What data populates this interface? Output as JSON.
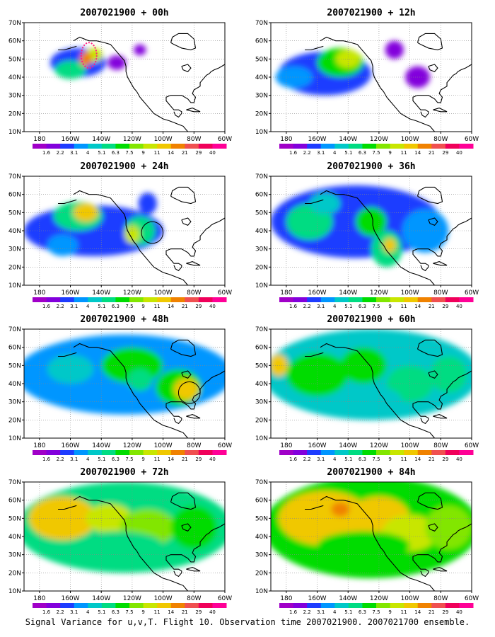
{
  "caption": "Signal Variance for u,v,T. Flight 10. Observation time 2007021900. 2007021700 ensemble.",
  "colorbar": {
    "labels": [
      "1.6",
      "2.2",
      "3.1",
      "4",
      "5.1",
      "6.3",
      "7.5",
      "9",
      "11",
      "14",
      "21",
      "29",
      "40"
    ],
    "colors": [
      "#a000c8",
      "#8200dc",
      "#1e3cff",
      "#0096ff",
      "#00c8c8",
      "#00dc82",
      "#00dc00",
      "#82e600",
      "#c8e600",
      "#f0c800",
      "#f08200",
      "#f05050",
      "#f0005a",
      "#ff0096"
    ]
  },
  "axes": {
    "x_ticks": [
      "180",
      "160W",
      "140W",
      "120W",
      "100W",
      "80W",
      "60W"
    ],
    "y_ticks": [
      "10N",
      "20N",
      "30N",
      "40N",
      "50N",
      "60N",
      "70N"
    ],
    "lon_range": [
      170,
      300
    ],
    "lat_range": [
      10,
      70
    ]
  },
  "panels": [
    {
      "title": "2007021900 + 00h",
      "blobs": [
        [
          205,
          48,
          18,
          8,
          2
        ],
        [
          200,
          44,
          10,
          5,
          5
        ],
        [
          215,
          52,
          6,
          4,
          8
        ],
        [
          210,
          50,
          4,
          4,
          10
        ],
        [
          230,
          48,
          6,
          4,
          1
        ],
        [
          245,
          55,
          4,
          3,
          1
        ]
      ],
      "rings": [],
      "dashed": [
        [
          212,
          52,
          5,
          7
        ]
      ]
    },
    {
      "title": "2007021900 + 12h",
      "blobs": [
        [
          205,
          42,
          30,
          12,
          2
        ],
        [
          215,
          48,
          15,
          8,
          6
        ],
        [
          220,
          50,
          8,
          5,
          8
        ],
        [
          185,
          40,
          12,
          6,
          3
        ],
        [
          250,
          55,
          6,
          5,
          1
        ],
        [
          265,
          40,
          8,
          6,
          1
        ]
      ],
      "rings": [],
      "dashed": []
    },
    {
      "title": "2007021900 + 24h",
      "blobs": [
        [
          215,
          40,
          45,
          14,
          2
        ],
        [
          205,
          48,
          16,
          8,
          5
        ],
        [
          210,
          50,
          8,
          5,
          9
        ],
        [
          245,
          40,
          10,
          8,
          5
        ],
        [
          240,
          38,
          5,
          5,
          8
        ],
        [
          195,
          32,
          10,
          6,
          3
        ],
        [
          250,
          55,
          6,
          6,
          2
        ]
      ],
      "rings": [
        [
          253,
          39,
          7
        ]
      ],
      "dashed": []
    },
    {
      "title": "2007021900 + 36h",
      "blobs": [
        [
          225,
          45,
          55,
          20,
          2
        ],
        [
          195,
          45,
          15,
          10,
          5
        ],
        [
          235,
          45,
          10,
          8,
          6
        ],
        [
          245,
          30,
          10,
          10,
          5
        ],
        [
          247,
          32,
          4,
          4,
          9
        ],
        [
          270,
          40,
          15,
          12,
          3
        ],
        [
          205,
          55,
          10,
          6,
          4
        ]
      ],
      "rings": [],
      "dashed": []
    },
    {
      "title": "2007021900 + 48h",
      "blobs": [
        [
          235,
          45,
          70,
          22,
          3
        ],
        [
          240,
          50,
          20,
          10,
          6
        ],
        [
          270,
          38,
          15,
          10,
          6
        ],
        [
          275,
          37,
          8,
          6,
          9
        ],
        [
          245,
          42,
          8,
          6,
          5
        ],
        [
          200,
          48,
          15,
          8,
          4
        ],
        [
          220,
          32,
          20,
          8,
          3
        ]
      ],
      "rings": [
        [
          277,
          35,
          7
        ]
      ],
      "dashed": []
    },
    {
      "title": "2007021900 + 60h",
      "blobs": [
        [
          235,
          45,
          70,
          25,
          4
        ],
        [
          200,
          45,
          20,
          12,
          6
        ],
        [
          175,
          50,
          6,
          6,
          9
        ],
        [
          230,
          50,
          15,
          10,
          6
        ],
        [
          260,
          40,
          15,
          10,
          5
        ],
        [
          285,
          45,
          12,
          10,
          5
        ],
        [
          240,
          30,
          15,
          8,
          4
        ]
      ],
      "rings": [],
      "dashed": []
    },
    {
      "title": "2007021900 + 72h",
      "blobs": [
        [
          235,
          45,
          70,
          25,
          5
        ],
        [
          195,
          50,
          22,
          12,
          9
        ],
        [
          225,
          50,
          15,
          8,
          8
        ],
        [
          250,
          45,
          18,
          10,
          7
        ],
        [
          280,
          45,
          15,
          12,
          6
        ],
        [
          230,
          35,
          30,
          8,
          5
        ]
      ],
      "rings": [],
      "dashed": []
    },
    {
      "title": "2007021900 + 84h",
      "blobs": [
        [
          235,
          45,
          70,
          28,
          6
        ],
        [
          205,
          50,
          30,
          15,
          9
        ],
        [
          240,
          50,
          20,
          12,
          9
        ],
        [
          260,
          42,
          18,
          10,
          8
        ],
        [
          285,
          45,
          15,
          12,
          7
        ],
        [
          230,
          35,
          30,
          8,
          6
        ],
        [
          215,
          55,
          6,
          4,
          10
        ]
      ],
      "rings": [],
      "dashed": []
    }
  ]
}
